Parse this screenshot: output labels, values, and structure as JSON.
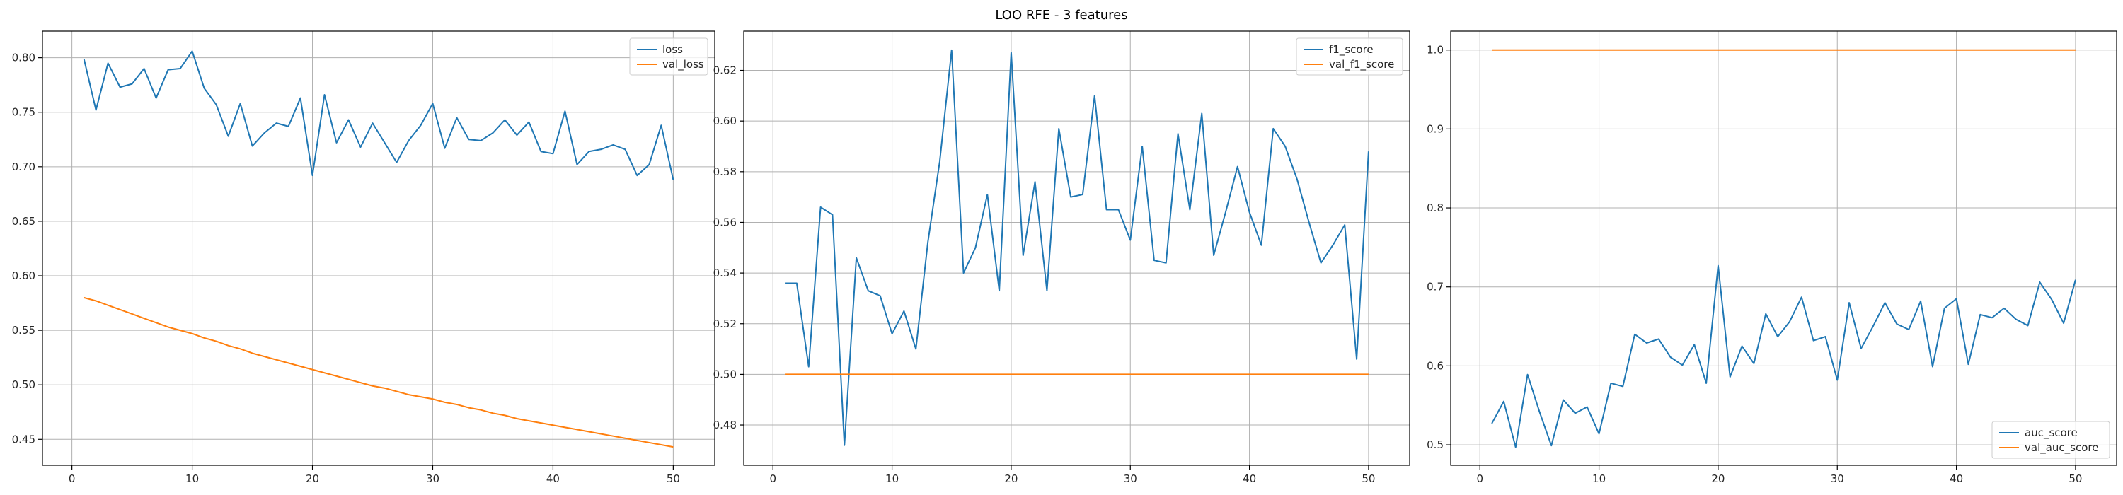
{
  "figure": {
    "title": "LOO RFE - 3 features"
  },
  "colors": {
    "series_blue": "#1f77b4",
    "series_orange": "#ff7f0e",
    "grid": "#b0b0b0",
    "axes": "#000000"
  },
  "chart_data": [
    {
      "type": "line",
      "title": "",
      "xlabel": "",
      "ylabel": "",
      "xlim": [
        -2.45,
        53.45
      ],
      "ylim": [
        0.4262,
        0.8244
      ],
      "xticks": [
        0,
        10,
        20,
        30,
        40,
        50
      ],
      "yticks": [
        0.45,
        0.5,
        0.55,
        0.6,
        0.65,
        0.7,
        0.75,
        0.8
      ],
      "ytick_labels": [
        "0.45",
        "0.50",
        "0.55",
        "0.60",
        "0.65",
        "0.70",
        "0.75",
        "0.80"
      ],
      "grid": true,
      "legend_position": "upper right",
      "x": [
        1,
        2,
        3,
        4,
        5,
        6,
        7,
        8,
        9,
        10,
        11,
        12,
        13,
        14,
        15,
        16,
        17,
        18,
        19,
        20,
        21,
        22,
        23,
        24,
        25,
        26,
        27,
        28,
        29,
        30,
        31,
        32,
        33,
        34,
        35,
        36,
        37,
        38,
        39,
        40,
        41,
        42,
        43,
        44,
        45,
        46,
        47,
        48,
        49,
        50
      ],
      "series": [
        {
          "name": "loss",
          "color": "#1f77b4",
          "values": [
            0.799,
            0.752,
            0.795,
            0.773,
            0.776,
            0.79,
            0.763,
            0.789,
            0.79,
            0.806,
            0.772,
            0.757,
            0.728,
            0.758,
            0.719,
            0.731,
            0.74,
            0.737,
            0.763,
            0.692,
            0.766,
            0.722,
            0.743,
            0.718,
            0.74,
            0.722,
            0.704,
            0.724,
            0.738,
            0.758,
            0.717,
            0.745,
            0.725,
            0.724,
            0.731,
            0.743,
            0.729,
            0.741,
            0.714,
            0.712,
            0.751,
            0.702,
            0.714,
            0.716,
            0.72,
            0.716,
            0.692,
            0.702,
            0.738,
            0.688
          ]
        },
        {
          "name": "val_loss",
          "color": "#ff7f0e",
          "values": [
            0.58,
            0.577,
            0.573,
            0.569,
            0.565,
            0.561,
            0.557,
            0.553,
            0.55,
            0.547,
            0.543,
            0.54,
            0.536,
            0.533,
            0.529,
            0.526,
            0.523,
            0.52,
            0.517,
            0.514,
            0.511,
            0.508,
            0.505,
            0.502,
            0.499,
            0.497,
            0.494,
            0.491,
            0.489,
            0.487,
            0.484,
            0.482,
            0.479,
            0.477,
            0.474,
            0.472,
            0.469,
            0.467,
            0.465,
            0.463,
            0.461,
            0.459,
            0.457,
            0.455,
            0.453,
            0.451,
            0.449,
            0.447,
            0.445,
            0.443
          ]
        }
      ]
    },
    {
      "type": "line",
      "title": "",
      "xlabel": "",
      "ylabel": "",
      "xlim": [
        -2.45,
        53.45
      ],
      "ylim": [
        0.4641,
        0.6355
      ],
      "xticks": [
        0,
        10,
        20,
        30,
        40,
        50
      ],
      "yticks": [
        0.48,
        0.5,
        0.52,
        0.54,
        0.56,
        0.58,
        0.6,
        0.62
      ],
      "ytick_labels": [
        "0.48",
        "0.50",
        "0.52",
        "0.54",
        "0.56",
        "0.58",
        "0.60",
        "0.62"
      ],
      "grid": true,
      "legend_position": "upper right",
      "x": [
        1,
        2,
        3,
        4,
        5,
        6,
        7,
        8,
        9,
        10,
        11,
        12,
        13,
        14,
        15,
        16,
        17,
        18,
        19,
        20,
        21,
        22,
        23,
        24,
        25,
        26,
        27,
        28,
        29,
        30,
        31,
        32,
        33,
        34,
        35,
        36,
        37,
        38,
        39,
        40,
        41,
        42,
        43,
        44,
        45,
        46,
        47,
        48,
        49,
        50
      ],
      "series": [
        {
          "name": "f1_score",
          "color": "#1f77b4",
          "values": [
            0.536,
            0.536,
            0.503,
            0.566,
            0.563,
            0.472,
            0.546,
            0.533,
            0.531,
            0.516,
            0.525,
            0.51,
            0.552,
            0.584,
            0.628,
            0.54,
            0.55,
            0.571,
            0.533,
            0.627,
            0.547,
            0.576,
            0.533,
            0.597,
            0.57,
            0.571,
            0.61,
            0.565,
            0.565,
            0.553,
            0.59,
            0.545,
            0.544,
            0.595,
            0.565,
            0.603,
            0.547,
            0.564,
            0.582,
            0.564,
            0.551,
            0.597,
            0.59,
            0.577,
            0.56,
            0.544,
            0.551,
            0.559,
            0.506,
            0.588
          ]
        },
        {
          "name": "val_f1_score",
          "color": "#ff7f0e",
          "values": [
            0.5,
            0.5,
            0.5,
            0.5,
            0.5,
            0.5,
            0.5,
            0.5,
            0.5,
            0.5,
            0.5,
            0.5,
            0.5,
            0.5,
            0.5,
            0.5,
            0.5,
            0.5,
            0.5,
            0.5,
            0.5,
            0.5,
            0.5,
            0.5,
            0.5,
            0.5,
            0.5,
            0.5,
            0.5,
            0.5,
            0.5,
            0.5,
            0.5,
            0.5,
            0.5,
            0.5,
            0.5,
            0.5,
            0.5,
            0.5,
            0.5,
            0.5,
            0.5,
            0.5,
            0.5,
            0.5,
            0.5,
            0.5,
            0.5,
            0.5
          ]
        }
      ]
    },
    {
      "type": "line",
      "title": "",
      "xlabel": "",
      "ylabel": "",
      "xlim": [
        -2.45,
        53.45
      ],
      "ylim": [
        0.4741,
        1.0239
      ],
      "xticks": [
        0,
        10,
        20,
        30,
        40,
        50
      ],
      "yticks": [
        0.5,
        0.6,
        0.7,
        0.8,
        0.9,
        1.0
      ],
      "ytick_labels": [
        "0.5",
        "0.6",
        "0.7",
        "0.8",
        "0.9",
        "1.0"
      ],
      "grid": true,
      "legend_position": "lower right",
      "x": [
        1,
        2,
        3,
        4,
        5,
        6,
        7,
        8,
        9,
        10,
        11,
        12,
        13,
        14,
        15,
        16,
        17,
        18,
        19,
        20,
        21,
        22,
        23,
        24,
        25,
        26,
        27,
        28,
        29,
        30,
        31,
        32,
        33,
        34,
        35,
        36,
        37,
        38,
        39,
        40,
        41,
        42,
        43,
        44,
        45,
        46,
        47,
        48,
        49,
        50
      ],
      "series": [
        {
          "name": "auc_score",
          "color": "#1f77b4",
          "values": [
            0.527,
            0.555,
            0.497,
            0.589,
            0.542,
            0.499,
            0.557,
            0.54,
            0.548,
            0.514,
            0.578,
            0.574,
            0.64,
            0.629,
            0.634,
            0.611,
            0.601,
            0.627,
            0.578,
            0.727,
            0.586,
            0.625,
            0.603,
            0.666,
            0.637,
            0.656,
            0.687,
            0.632,
            0.637,
            0.582,
            0.68,
            0.622,
            0.65,
            0.68,
            0.653,
            0.646,
            0.682,
            0.599,
            0.673,
            0.685,
            0.602,
            0.665,
            0.661,
            0.673,
            0.659,
            0.651,
            0.706,
            0.684,
            0.654,
            0.709
          ]
        },
        {
          "name": "val_auc_score",
          "color": "#ff7f0e",
          "values": [
            1.0,
            1.0,
            1.0,
            1.0,
            1.0,
            1.0,
            1.0,
            1.0,
            1.0,
            1.0,
            1.0,
            1.0,
            1.0,
            1.0,
            1.0,
            1.0,
            1.0,
            1.0,
            1.0,
            1.0,
            1.0,
            1.0,
            1.0,
            1.0,
            1.0,
            1.0,
            1.0,
            1.0,
            1.0,
            1.0,
            1.0,
            1.0,
            1.0,
            1.0,
            1.0,
            1.0,
            1.0,
            1.0,
            1.0,
            1.0,
            1.0,
            1.0,
            1.0,
            1.0,
            1.0,
            1.0,
            1.0,
            1.0,
            1.0,
            1.0
          ]
        }
      ]
    }
  ]
}
